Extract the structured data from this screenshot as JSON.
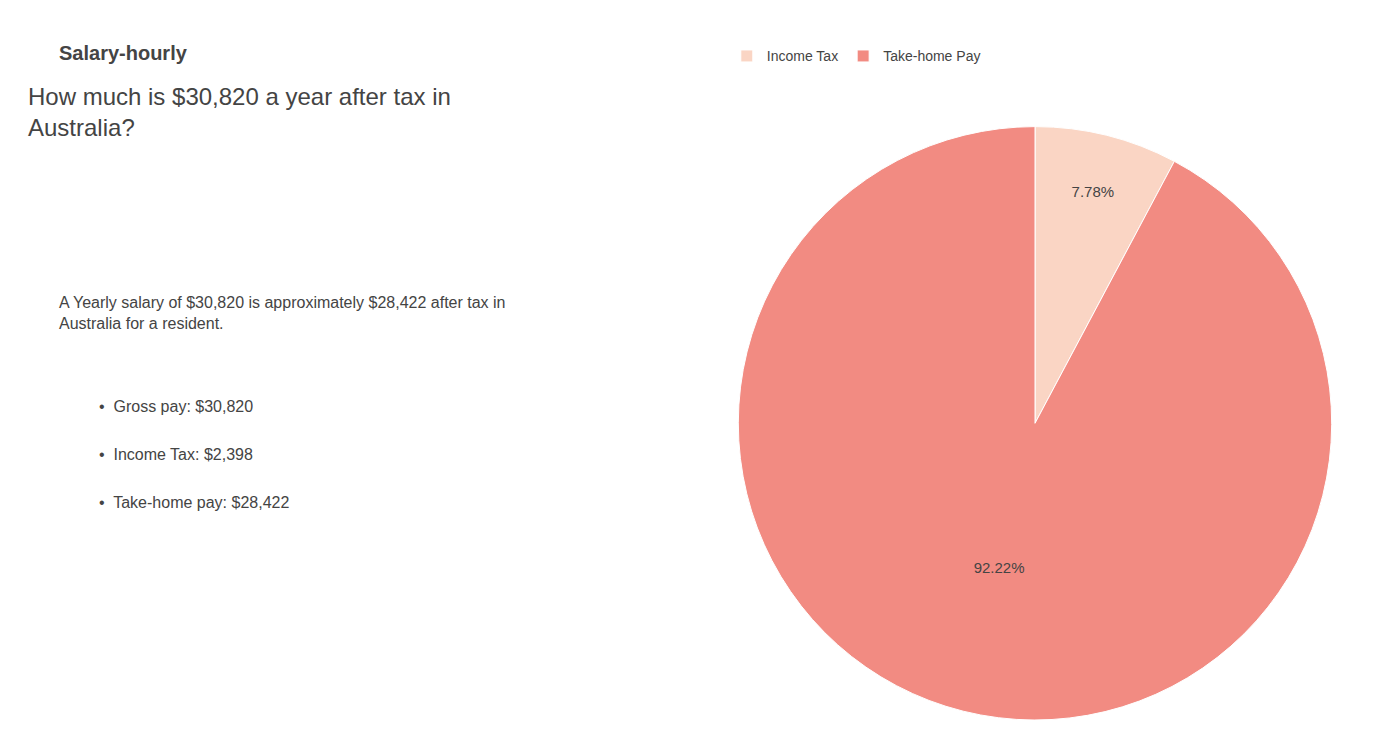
{
  "chart_data": {
    "type": "pie",
    "title": "How much is $30,820 a year after tax in\nAustralia?",
    "categories": [
      "Income Tax",
      "Take-home Pay"
    ],
    "values": [
      7.78,
      92.22
    ],
    "value_labels": [
      "7.78%",
      "92.22%"
    ],
    "colors": [
      "#fad5c4",
      "#f28b82"
    ],
    "data_labels": true,
    "legend": "top",
    "annotations": [
      "Salary-hourly",
      "A Yearly salary of $30,820 is approximately $28,422 after tax in\nAustralia for a resident.",
      "•  Gross pay: $30,820",
      "•  Income Tax: $2,398",
      "•  Take-home pay: $28,422"
    ]
  }
}
